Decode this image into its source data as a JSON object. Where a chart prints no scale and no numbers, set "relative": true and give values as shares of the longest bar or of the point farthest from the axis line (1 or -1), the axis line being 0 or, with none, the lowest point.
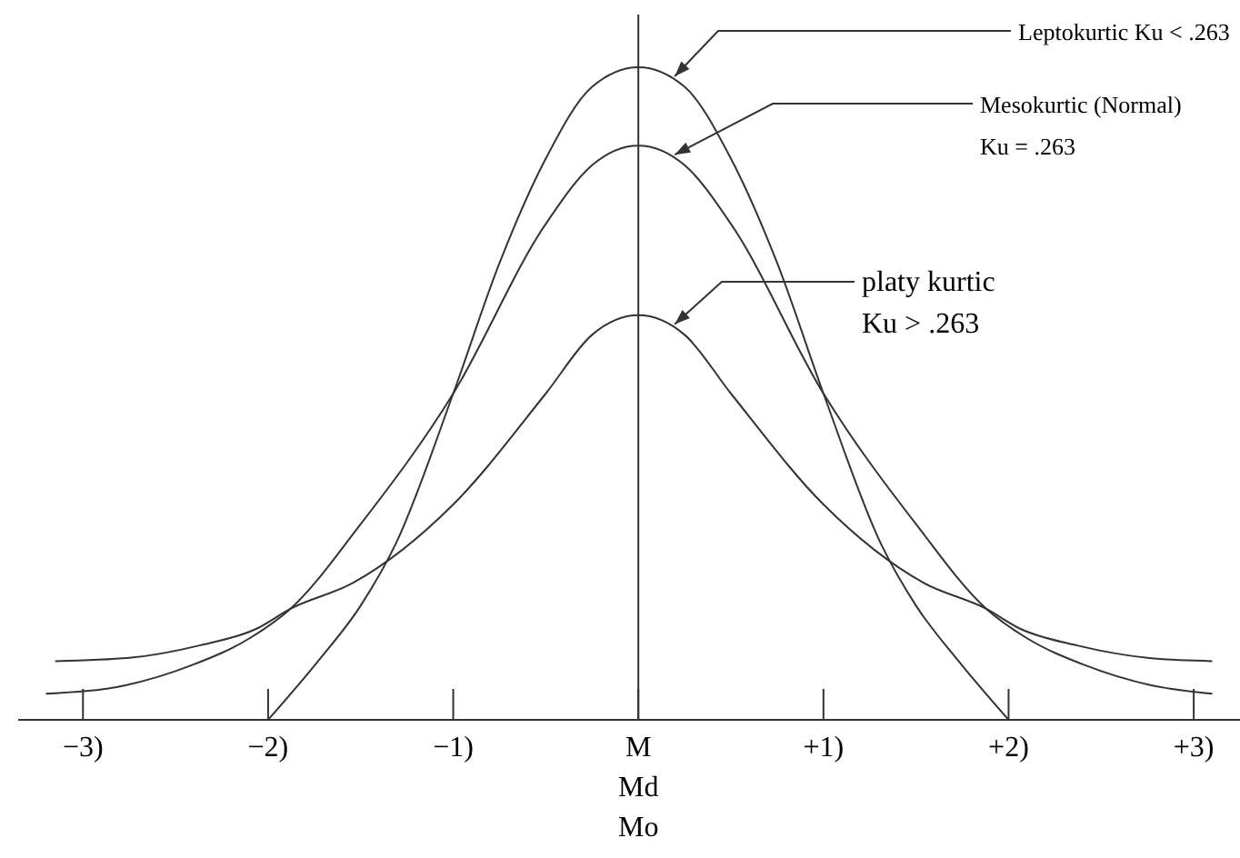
{
  "chart_data": {
    "type": "line",
    "relative": true,
    "xlim": [
      -3.35,
      3.25
    ],
    "xticks": [
      {
        "value": -3,
        "label": "−3)"
      },
      {
        "value": -2,
        "label": "−2)"
      },
      {
        "value": -1,
        "label": "−1)"
      },
      {
        "value": 0,
        "label": "M\nMd\nMo"
      },
      {
        "value": 1,
        "label": "+1)"
      },
      {
        "value": 2,
        "label": "+2)"
      },
      {
        "value": 3,
        "label": "+3)"
      }
    ],
    "series": [
      {
        "color": "#333333",
        "x": [
          -2,
          -1.73,
          -1.5,
          -1.31,
          -1,
          -0.75,
          -0.5,
          -0.25,
          0,
          0.25,
          0.5,
          0.75,
          1,
          1.31,
          1.5,
          1.73,
          2
        ],
        "values": [
          0,
          0.09,
          0.175,
          0.27,
          0.5,
          0.7,
          0.86,
          0.97,
          1,
          0.97,
          0.86,
          0.7,
          0.5,
          0.27,
          0.175,
          0.09,
          0
        ]
      },
      {
        "color": "#333333",
        "x": [
          -3.2,
          -2.77,
          -2.41,
          -2.1,
          -1.88,
          -1.5,
          -1,
          -0.5,
          -0.25,
          0,
          0.25,
          0.5,
          1,
          1.5,
          1.88,
          2.1,
          2.41,
          2.77,
          3.1
        ],
        "values": [
          0.04,
          0.053,
          0.084,
          0.125,
          0.17,
          0.3,
          0.5,
          0.76,
          0.85,
          0.88,
          0.85,
          0.76,
          0.5,
          0.3,
          0.17,
          0.125,
          0.084,
          0.053,
          0.04
        ]
      },
      {
        "color": "#333333",
        "x": [
          -3.15,
          -2.75,
          -2.37,
          -2.06,
          -1.88,
          -1.54,
          -1,
          -0.5,
          -0.25,
          0,
          0.25,
          0.5,
          1,
          1.54,
          1.88,
          2.06,
          2.37,
          2.75,
          3.1
        ],
        "values": [
          0.09,
          0.095,
          0.114,
          0.14,
          0.17,
          0.21,
          0.33,
          0.5,
          0.59,
          0.62,
          0.59,
          0.5,
          0.33,
          0.21,
          0.17,
          0.14,
          0.114,
          0.095,
          0.09
        ]
      }
    ],
    "ref_lines": [
      {
        "axis": "x",
        "value": 0
      }
    ],
    "annotations": [
      "Leptokurtic Ku < .263",
      "Mesokurtic (Normal)\nKu = .263",
      "platy kurtic\nKu > .263"
    ]
  }
}
